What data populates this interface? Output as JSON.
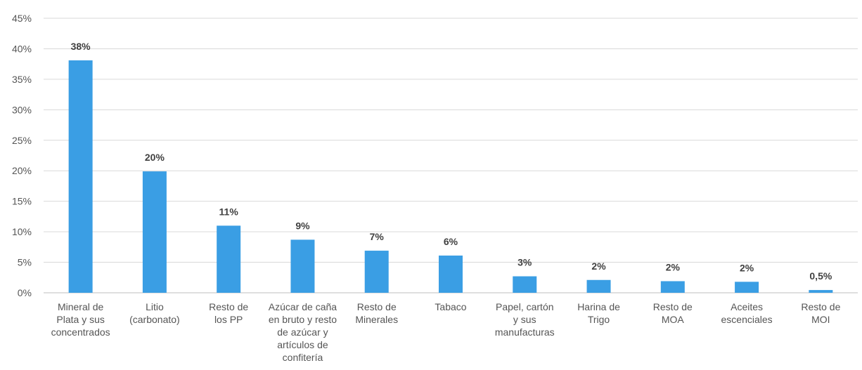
{
  "chart_data": {
    "type": "bar",
    "categories": [
      [
        "Mineral de",
        "Plata y sus",
        "concentrados"
      ],
      [
        "Litio",
        "(carbonato)"
      ],
      [
        "Resto de",
        "los PP"
      ],
      [
        "Azúcar de caña",
        "en bruto y resto",
        "de azúcar y",
        "artículos de",
        "confitería"
      ],
      [
        "Resto de",
        "Minerales"
      ],
      [
        "Tabaco"
      ],
      [
        "Papel, cartón",
        "y sus",
        "manufacturas"
      ],
      [
        "Harina de",
        "Trigo"
      ],
      [
        "Resto de",
        "MOA"
      ],
      [
        "Aceites",
        "escenciales"
      ],
      [
        "Resto de",
        "MOI"
      ]
    ],
    "values": [
      38.1,
      19.9,
      11.0,
      8.7,
      6.9,
      6.1,
      2.7,
      2.1,
      1.9,
      1.8,
      0.45
    ],
    "data_labels": [
      "38%",
      "20%",
      "11%",
      "9%",
      "7%",
      "6%",
      "3%",
      "2%",
      "2%",
      "2%",
      "0,5%"
    ],
    "ylim": [
      0,
      45
    ],
    "yticks": [
      0,
      5,
      10,
      15,
      20,
      25,
      30,
      35,
      40,
      45
    ],
    "ytick_labels": [
      "0%",
      "5%",
      "10%",
      "15%",
      "20%",
      "25%",
      "30%",
      "35%",
      "40%",
      "45%"
    ],
    "title": "",
    "xlabel": "",
    "ylabel": "",
    "grid": true,
    "bar_color": "#3a9ee4"
  }
}
